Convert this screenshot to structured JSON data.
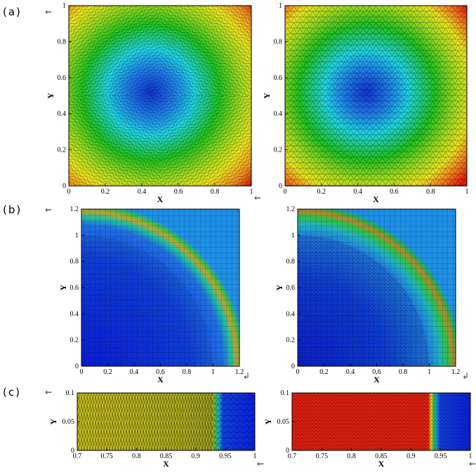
{
  "row_labels": [
    "(a)",
    "(b)",
    "(c)"
  ],
  "arrow_glyph": "⇜",
  "return_glyph": "↲",
  "colors": {
    "blue": "#1030d0",
    "light_blue": "#1f8fe6",
    "cyan": "#20d0e0",
    "green": "#20c020",
    "yellow": "#e6e020",
    "orange": "#f0a020",
    "red": "#e02010"
  },
  "chart_data": [
    {
      "id": "a-left",
      "type": "heatmap",
      "xlabel": "X",
      "ylabel": "Y",
      "xlim": [
        0,
        1
      ],
      "ylim": [
        0,
        1
      ],
      "xticks": [
        "0",
        "0.2",
        "0.4",
        "0.6",
        "0.8",
        "1"
      ],
      "yticks": [
        "0",
        "0.2",
        "0.4",
        "0.6",
        "0.8",
        "1"
      ],
      "field": "radial minimum at center (0.5,0.5), maxima at corners",
      "mesh": "stretched triangular"
    },
    {
      "id": "a-right",
      "type": "heatmap",
      "xlabel": "X",
      "ylabel": "Y",
      "xlim": [
        0,
        1
      ],
      "ylim": [
        0,
        1
      ],
      "xticks": [
        "0",
        "0.2",
        "0.4",
        "0.6",
        "0.8",
        "1"
      ],
      "yticks": [
        "0",
        "0.2",
        "0.4",
        "0.6",
        "0.8",
        "1"
      ],
      "field": "radial minimum at center (0.5,0.5), maxima at corners",
      "mesh": "isotropic triangular"
    },
    {
      "id": "b-left",
      "type": "heatmap",
      "xlabel": "X",
      "ylabel": "Y",
      "xlim": [
        0,
        1.2
      ],
      "ylim": [
        0,
        1.2
      ],
      "xticks": [
        "0",
        "0.2",
        "0.4",
        "0.6",
        "0.8",
        "1",
        "1.2"
      ],
      "yticks": [
        "0",
        "0.2",
        "0.4",
        "0.6",
        "0.8",
        "1",
        "1.2"
      ],
      "field": "quarter-circle front at radius 1",
      "mesh": "stretched"
    },
    {
      "id": "b-right",
      "type": "heatmap",
      "xlabel": "X",
      "ylabel": "Y",
      "xlim": [
        0,
        1.2
      ],
      "ylim": [
        0,
        1.2
      ],
      "xticks": [
        "0",
        "0.2",
        "0.4",
        "0.6",
        "0.8",
        "1",
        "1.2"
      ],
      "yticks": [
        "0",
        "0.2",
        "0.4",
        "0.6",
        "0.8",
        "1",
        "1.2"
      ],
      "field": "quarter-circle front at radius 1",
      "mesh": "isotropic"
    },
    {
      "id": "c-left",
      "type": "heatmap",
      "xlabel": "X",
      "ylabel": "Y",
      "xlim": [
        0.7,
        1
      ],
      "ylim": [
        0,
        0.1
      ],
      "xticks": [
        "0.7",
        "0.75",
        "0.8",
        "0.85",
        "0.9",
        "0.95",
        "1"
      ],
      "yticks": [
        "0",
        "0.05",
        "0.1"
      ],
      "field": "front at x=0.935",
      "mesh": "stretched"
    },
    {
      "id": "c-right",
      "type": "heatmap",
      "xlabel": "X",
      "ylabel": "Y",
      "xlim": [
        0.7,
        1
      ],
      "ylim": [
        0,
        0.1
      ],
      "xticks": [
        "0.7",
        "0.75",
        "0.8",
        "0.85",
        "0.9",
        "0.95",
        "1"
      ],
      "yticks": [
        "0",
        "0.05",
        "0.1"
      ],
      "field": "front at x=0.935",
      "mesh": "isotropic"
    }
  ]
}
